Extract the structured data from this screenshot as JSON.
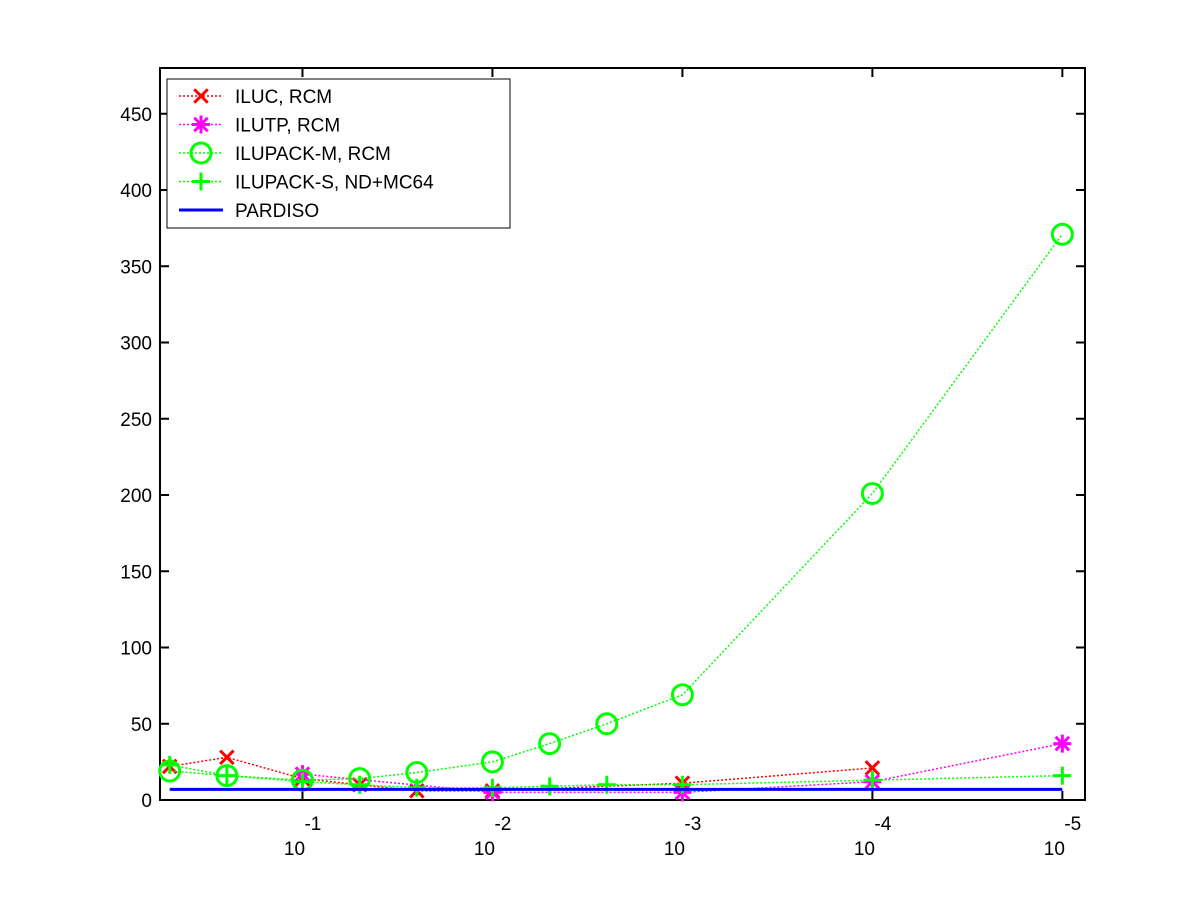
{
  "chart_data": {
    "type": "line",
    "xscale": "log",
    "xlim": [
      0.5623,
      7.6e-06
    ],
    "xticks": [
      {
        "value": 0.1,
        "label": "10",
        "exponent": "-1"
      },
      {
        "value": 0.01,
        "label": "10",
        "exponent": "-2"
      },
      {
        "value": 0.001,
        "label": "10",
        "exponent": "-3"
      },
      {
        "value": 0.0001,
        "label": "10",
        "exponent": "-4"
      },
      {
        "value": 1e-05,
        "label": "10",
        "exponent": "-5"
      }
    ],
    "ylim": [
      0,
      480
    ],
    "yticks": [
      0,
      50,
      100,
      150,
      200,
      250,
      300,
      350,
      400,
      450
    ],
    "legend": "upper-left",
    "series": [
      {
        "name": "ILUC, RCM",
        "color": "#ff0000",
        "marker": "x",
        "linestyle": "dotted",
        "x": [
          0.5,
          0.25,
          0.1,
          0.05,
          0.025,
          0.01,
          0.001,
          0.0001
        ],
        "values": [
          22,
          28,
          14,
          10,
          6,
          6,
          11,
          21
        ]
      },
      {
        "name": "ILUTP, RCM",
        "color": "#ff00ff",
        "marker": "star",
        "linestyle": "dotted",
        "x": [
          0.1,
          0.01,
          0.001,
          0.0001,
          1e-05
        ],
        "values": [
          17,
          5,
          5,
          12,
          37
        ]
      },
      {
        "name": "ILUPACK-M, RCM",
        "color": "#00ff00",
        "marker": "circle",
        "linestyle": "dotted",
        "x": [
          0.5,
          0.25,
          0.1,
          0.05,
          0.025,
          0.01,
          0.005,
          0.0025,
          0.001,
          0.0001,
          1e-05
        ],
        "values": [
          19,
          16,
          13,
          14,
          18,
          25,
          37,
          50,
          69,
          201,
          371
        ]
      },
      {
        "name": "ILUPACK-S, ND+MC64",
        "color": "#00ff00",
        "marker": "plus",
        "linestyle": "dotted",
        "x": [
          0.5,
          0.25,
          0.1,
          0.05,
          0.025,
          0.01,
          0.005,
          0.0025,
          0.001,
          0.0001,
          1e-05
        ],
        "values": [
          23,
          16,
          12,
          10,
          8,
          8,
          9,
          10,
          10,
          13,
          16
        ]
      },
      {
        "name": "PARDISO",
        "color": "#0000ff",
        "marker": "none",
        "linestyle": "solid",
        "x": [
          0.5,
          1e-05
        ],
        "values": [
          7,
          7
        ]
      }
    ]
  }
}
